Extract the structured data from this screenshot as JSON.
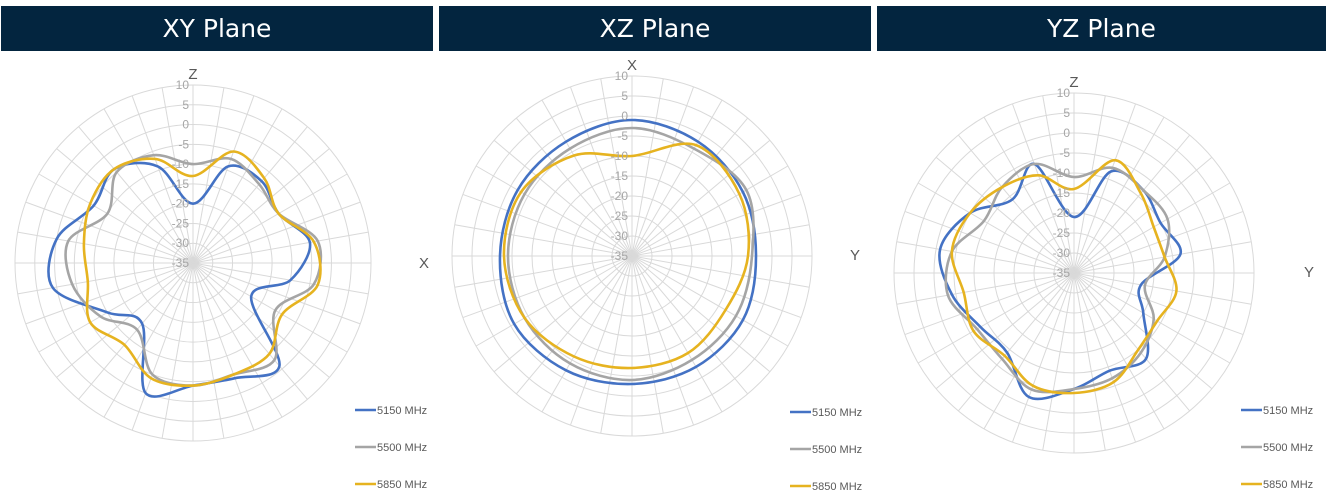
{
  "panels": [
    {
      "title": "XY Plane"
    },
    {
      "title": "XZ Plane"
    },
    {
      "title": "YZ Plane"
    }
  ],
  "colors": {
    "header_bg": "#03253f",
    "header_text": "#ffffff",
    "grid": "#d9d9d9",
    "tick_text": "#a6a6a6"
  },
  "chart_data": [
    {
      "type": "radar",
      "title": "XY Plane",
      "top_axis_label": "Z",
      "side_axis_label": "X",
      "radial_ticks": [
        "10",
        "5",
        "0",
        "-5",
        "-10",
        "-15",
        "-20",
        "-25",
        "-30",
        "-35"
      ],
      "rlim": [
        -35,
        10
      ],
      "angle_step_deg": 10,
      "legend_placement": "bottom-right",
      "series": [
        {
          "name": "5150 MHz",
          "color": "#4472c4",
          "angles": [
            0,
            20,
            40,
            60,
            80,
            100,
            120,
            140,
            160,
            180,
            200,
            220,
            240,
            260,
            280,
            300,
            320,
            340
          ],
          "values": [
            -20,
            -9,
            -8,
            -10,
            -5,
            -10,
            -18,
            -1,
            -4,
            -4,
            0,
            -15,
            -10,
            1,
            0,
            -6,
            -4,
            -9
          ]
        },
        {
          "name": "5500 MHz",
          "color": "#a5a5a5",
          "angles": [
            0,
            20,
            40,
            60,
            80,
            100,
            120,
            140,
            160,
            180,
            200,
            220,
            240,
            260,
            280,
            300,
            320,
            340
          ],
          "values": [
            -10,
            -7,
            -9,
            -10,
            -3,
            -4,
            -11,
            -3,
            -5,
            -4,
            -5,
            -13,
            -8,
            -4,
            -3,
            -10,
            -5,
            -6
          ]
        },
        {
          "name": "5850 MHz",
          "color": "#e6b320",
          "angles": [
            0,
            20,
            40,
            60,
            80,
            100,
            120,
            140,
            160,
            180,
            200,
            220,
            240,
            260,
            280,
            300,
            320,
            340
          ],
          "values": [
            -13,
            -5,
            -7,
            -10,
            -4,
            -3,
            -9,
            -5,
            -5,
            -4,
            -4,
            -8,
            -5,
            -8,
            -7,
            -5,
            -4,
            -7
          ]
        }
      ]
    },
    {
      "type": "radar",
      "title": "XZ Plane",
      "top_axis_label": "X",
      "side_axis_label": "Y",
      "radial_ticks": [
        "10",
        "5",
        "0",
        "-5",
        "-10",
        "-15",
        "-20",
        "-25",
        "-30",
        "-35"
      ],
      "rlim": [
        -35,
        10
      ],
      "angle_step_deg": 10,
      "legend_placement": "bottom-right",
      "series": [
        {
          "name": "5150 MHz",
          "color": "#4472c4",
          "angles": [
            0,
            30,
            60,
            90,
            120,
            150,
            180,
            210,
            240,
            270,
            300,
            330
          ],
          "values": [
            -1,
            -2,
            -3,
            -4,
            -3,
            -3,
            -3,
            -2,
            -1,
            -2,
            -2,
            -2
          ]
        },
        {
          "name": "5500 MHz",
          "color": "#a5a5a5",
          "angles": [
            0,
            30,
            60,
            90,
            120,
            150,
            180,
            210,
            240,
            270,
            300,
            330
          ],
          "values": [
            -3,
            -4,
            -2,
            -5,
            -5,
            -5,
            -4,
            -4,
            -4,
            -4,
            -4,
            -4
          ]
        },
        {
          "name": "5850 MHz",
          "color": "#e6b320",
          "angles": [
            0,
            30,
            60,
            90,
            120,
            150,
            180,
            210,
            240,
            270,
            300,
            330
          ],
          "values": [
            -10,
            -3,
            -4,
            -6,
            -8,
            -7,
            -7,
            -6,
            -4,
            -3,
            -3,
            -6
          ]
        }
      ]
    },
    {
      "type": "radar",
      "title": "YZ Plane",
      "top_axis_label": "Z",
      "side_axis_label": "Y",
      "radial_ticks": [
        "10",
        "5",
        "0",
        "-5",
        "-10",
        "-15",
        "-20",
        "-25",
        "-30",
        "-35"
      ],
      "rlim": [
        -35,
        10
      ],
      "angle_step_deg": 10,
      "legend_placement": "bottom-right",
      "series": [
        {
          "name": "5150 MHz",
          "color": "#4472c4",
          "angles": [
            0,
            20,
            40,
            60,
            80,
            100,
            120,
            140,
            160,
            180,
            200,
            220,
            240,
            260,
            280,
            300,
            320,
            340
          ],
          "values": [
            -21,
            -8,
            -8,
            -10,
            -8,
            -18,
            -15,
            -7,
            -9,
            -6,
            -2,
            -9,
            -8,
            -4,
            -1,
            -5,
            -11,
            -6
          ]
        },
        {
          "name": "5500 MHz",
          "color": "#a5a5a5",
          "angles": [
            0,
            20,
            40,
            60,
            80,
            100,
            120,
            140,
            160,
            180,
            200,
            220,
            240,
            260,
            280,
            300,
            320,
            340
          ],
          "values": [
            -11,
            -7,
            -8,
            -8,
            -12,
            -17,
            -12,
            -9,
            -7,
            -6,
            -4,
            -7,
            -7,
            -3,
            -4,
            -9,
            -7,
            -6
          ]
        },
        {
          "name": "5850 MHz",
          "color": "#e6b320",
          "angles": [
            0,
            20,
            40,
            60,
            80,
            100,
            120,
            140,
            160,
            180,
            200,
            220,
            240,
            260,
            280,
            300,
            320,
            340
          ],
          "values": [
            -14,
            -5,
            -9,
            -12,
            -12,
            -9,
            -11,
            -10,
            -6,
            -5,
            -5,
            -8,
            -6,
            -7,
            -4,
            -5,
            -7,
            -9
          ]
        }
      ]
    }
  ]
}
